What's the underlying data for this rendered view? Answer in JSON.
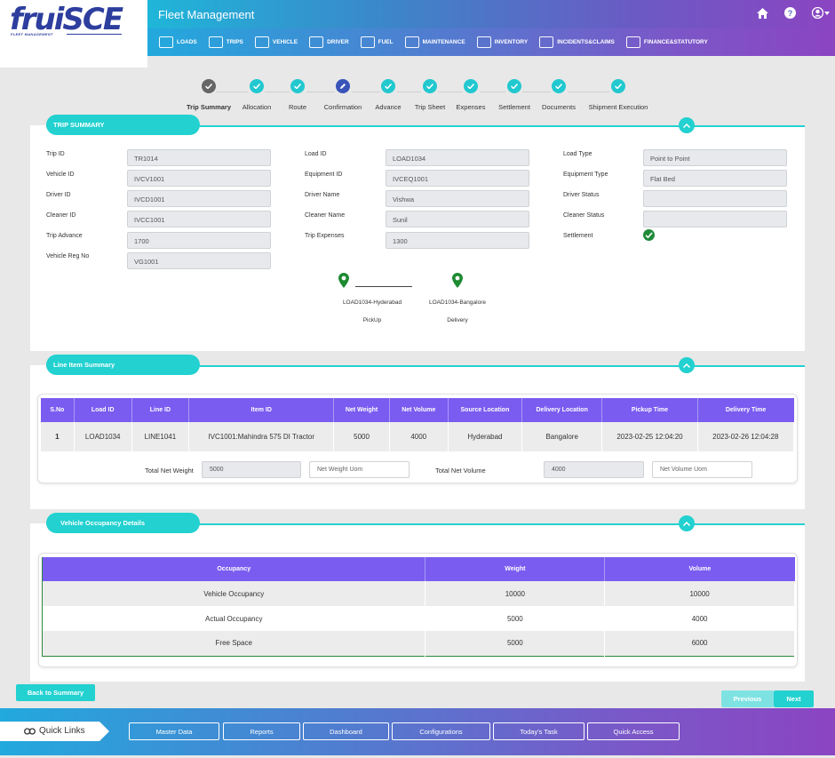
{
  "brand": {
    "logo": "fruiSCE",
    "logo_sub": "FLEET MANAGEMENT"
  },
  "header": {
    "title": "Fleet Management"
  },
  "nav": [
    "LOADS",
    "TRIPS",
    "VEHICLE",
    "DRIVER",
    "FUEL",
    "MAINTENANCE",
    "INVENTORY",
    "INCIDENTS&CLAIMS",
    "FINANCE&STATUTORY"
  ],
  "steps": [
    "Trip Summary",
    "Allocation",
    "Route",
    "Confirmation",
    "Advance",
    "Trip Sheet",
    "Expenses",
    "Settlement",
    "Documents",
    "Shipment Execution"
  ],
  "trip_summary": {
    "title": "TRIP SUMMARY",
    "col1": [
      {
        "label": "Trip ID",
        "value": "TR1014"
      },
      {
        "label": "Vehicle ID",
        "value": "IVCV1001"
      },
      {
        "label": "Driver ID",
        "value": "IVCD1001"
      },
      {
        "label": "Cleaner ID",
        "value": "IVCC1001"
      },
      {
        "label": "Trip Advance",
        "value": "1700"
      },
      {
        "label": "Vehicle Reg No",
        "value": "VG1001"
      }
    ],
    "col2": [
      {
        "label": "Load ID",
        "value": "LOAD1034"
      },
      {
        "label": "Equipment ID",
        "value": "IVCEQ1001"
      },
      {
        "label": "Driver Name",
        "value": "Vishwa"
      },
      {
        "label": "Cleaner Name",
        "value": "Sunil"
      },
      {
        "label": "Trip Expenses",
        "value": "1300"
      }
    ],
    "col3": [
      {
        "label": "Load Type",
        "value": "Point to Point"
      },
      {
        "label": "Equipment Type",
        "value": "Flat Bed"
      },
      {
        "label": "Driver Status",
        "value": ""
      },
      {
        "label": "Cleaner Status",
        "value": ""
      }
    ],
    "settlement_label": "Settlement",
    "pickup": {
      "name": "LOAD1034-Hyderabad",
      "type": "PickUp"
    },
    "delivery": {
      "name": "LOAD1034-Bangalore",
      "type": "Delivery"
    }
  },
  "line_items": {
    "title": "Line Item Summary",
    "headers": [
      "S.No",
      "Load ID",
      "Line ID",
      "Item ID",
      "Net Weight",
      "Net Volume",
      "Source Location",
      "Delivery Location",
      "Pickup Time",
      "Delivery Time"
    ],
    "rows": [
      [
        "1",
        "LOAD1034",
        "LINE1041",
        "IVC1001:Mahindra 575 DI Tractor",
        "5000",
        "4000",
        "Hyderabad",
        "Bangalore",
        "2023-02-25 12:04:20",
        "2023-02-26 12:04:28"
      ]
    ],
    "total_weight_label": "Total Net Weight",
    "total_weight": "5000",
    "weight_uom_placeholder": "Net Weight Uom",
    "total_volume_label": "Total Net Volume",
    "total_volume": "4000",
    "volume_uom_placeholder": "Net Volume Uom"
  },
  "occupancy": {
    "title": "Vehicle Occupancy Details",
    "headers": [
      "Occupancy",
      "Weight",
      "Volume"
    ],
    "rows": [
      [
        "Vehicle Occupancy",
        "10000",
        "10000"
      ],
      [
        "Actual Occupancy",
        "5000",
        "4000"
      ],
      [
        "Free Space",
        "5000",
        "6000"
      ]
    ]
  },
  "buttons": {
    "back": "Back to Summary",
    "previous": "Previous",
    "next": "Next"
  },
  "footer": {
    "quick_links": "Quick Links",
    "links": [
      "Master Data",
      "Reports",
      "Dashboard",
      "Configurations",
      "Today's Task",
      "Quick Access"
    ]
  },
  "colors": {
    "teal": "#22d1d0",
    "purple": "#7a5cf0",
    "brand": "#2d3e9e"
  }
}
